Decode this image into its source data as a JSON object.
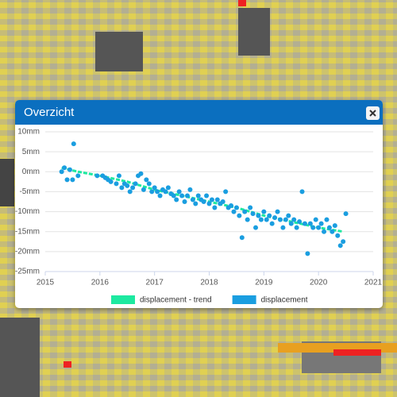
{
  "popup": {
    "title": "Overzicht"
  },
  "chart_data": {
    "type": "scatter",
    "xlim": [
      2015,
      2021
    ],
    "xticks": [
      2015,
      2016,
      2017,
      2018,
      2019,
      2020,
      2021
    ],
    "ylim": [
      -25,
      10
    ],
    "yticks": [
      {
        "value": 10,
        "label": "10mm"
      },
      {
        "value": 5,
        "label": "5mm"
      },
      {
        "value": 0,
        "label": "0mm"
      },
      {
        "value": -5,
        "label": "-5mm"
      },
      {
        "value": -10,
        "label": "-10mm"
      },
      {
        "value": -15,
        "label": "-15mm"
      },
      {
        "value": -20,
        "label": "-20mm"
      },
      {
        "value": -25,
        "label": "-25mm"
      }
    ],
    "grid": true,
    "series": [
      {
        "name": "displacement - trend",
        "type": "line",
        "color": "#1de9a0",
        "x": [
          2015.3,
          2015.6,
          2016,
          2016.5,
          2017,
          2017.5,
          2018,
          2018.5,
          2019,
          2019.5,
          2020,
          2020.45
        ],
        "values": [
          1,
          0,
          -1,
          -2.5,
          -4.5,
          -6,
          -7.5,
          -9,
          -11,
          -12.5,
          -14,
          -15
        ]
      },
      {
        "name": "displacement",
        "type": "scatter",
        "color": "#1a9ee0",
        "x": [
          2015.3,
          2015.35,
          2015.4,
          2015.45,
          2015.5,
          2015.52,
          2015.6,
          2015.95,
          2016.05,
          2016.1,
          2016.15,
          2016.2,
          2016.3,
          2016.35,
          2016.4,
          2016.45,
          2016.5,
          2016.55,
          2016.6,
          2016.65,
          2016.7,
          2016.75,
          2016.8,
          2016.85,
          2016.9,
          2016.95,
          2017.0,
          2017.05,
          2017.1,
          2017.15,
          2017.2,
          2017.25,
          2017.3,
          2017.35,
          2017.4,
          2017.45,
          2017.5,
          2017.55,
          2017.6,
          2017.65,
          2017.7,
          2017.75,
          2017.8,
          2017.85,
          2017.9,
          2017.95,
          2018.0,
          2018.05,
          2018.1,
          2018.15,
          2018.2,
          2018.25,
          2018.3,
          2018.35,
          2018.4,
          2018.45,
          2018.5,
          2018.55,
          2018.6,
          2018.65,
          2018.7,
          2018.75,
          2018.8,
          2018.85,
          2018.9,
          2018.95,
          2019.0,
          2019.05,
          2019.1,
          2019.15,
          2019.2,
          2019.25,
          2019.3,
          2019.35,
          2019.4,
          2019.45,
          2019.5,
          2019.55,
          2019.6,
          2019.65,
          2019.7,
          2019.75,
          2019.8,
          2019.85,
          2019.9,
          2019.95,
          2020.0,
          2020.05,
          2020.1,
          2020.15,
          2020.2,
          2020.25,
          2020.3,
          2020.35,
          2020.4,
          2020.45,
          2020.5
        ],
        "values": [
          0,
          1,
          -2,
          0.5,
          -2,
          7,
          -1,
          -1,
          -1,
          -1.5,
          -2,
          -2.5,
          -3,
          -1,
          -4,
          -3,
          -3.5,
          -5,
          -4,
          -3,
          -1,
          -0.5,
          -4.5,
          -2,
          -3,
          -5,
          -4,
          -5,
          -6,
          -4.5,
          -5,
          -4,
          -5.5,
          -6,
          -7,
          -5,
          -6,
          -7.5,
          -6,
          -4.5,
          -7,
          -8,
          -6,
          -7,
          -7.5,
          -6,
          -8,
          -7,
          -9,
          -7,
          -8,
          -7.5,
          -5,
          -9,
          -8.5,
          -10,
          -9,
          -11,
          -16.5,
          -10,
          -12,
          -9,
          -10.5,
          -14,
          -11,
          -12,
          -10,
          -12,
          -11,
          -13,
          -11.5,
          -10,
          -12,
          -14,
          -12,
          -11,
          -13,
          -12,
          -14,
          -12.5,
          -5,
          -13,
          -20.5,
          -13,
          -14,
          -12,
          -14,
          -13,
          -15,
          -12,
          -14,
          -15,
          -13.5,
          -16,
          -18.5,
          -17.5,
          -10.5
        ]
      }
    ]
  }
}
